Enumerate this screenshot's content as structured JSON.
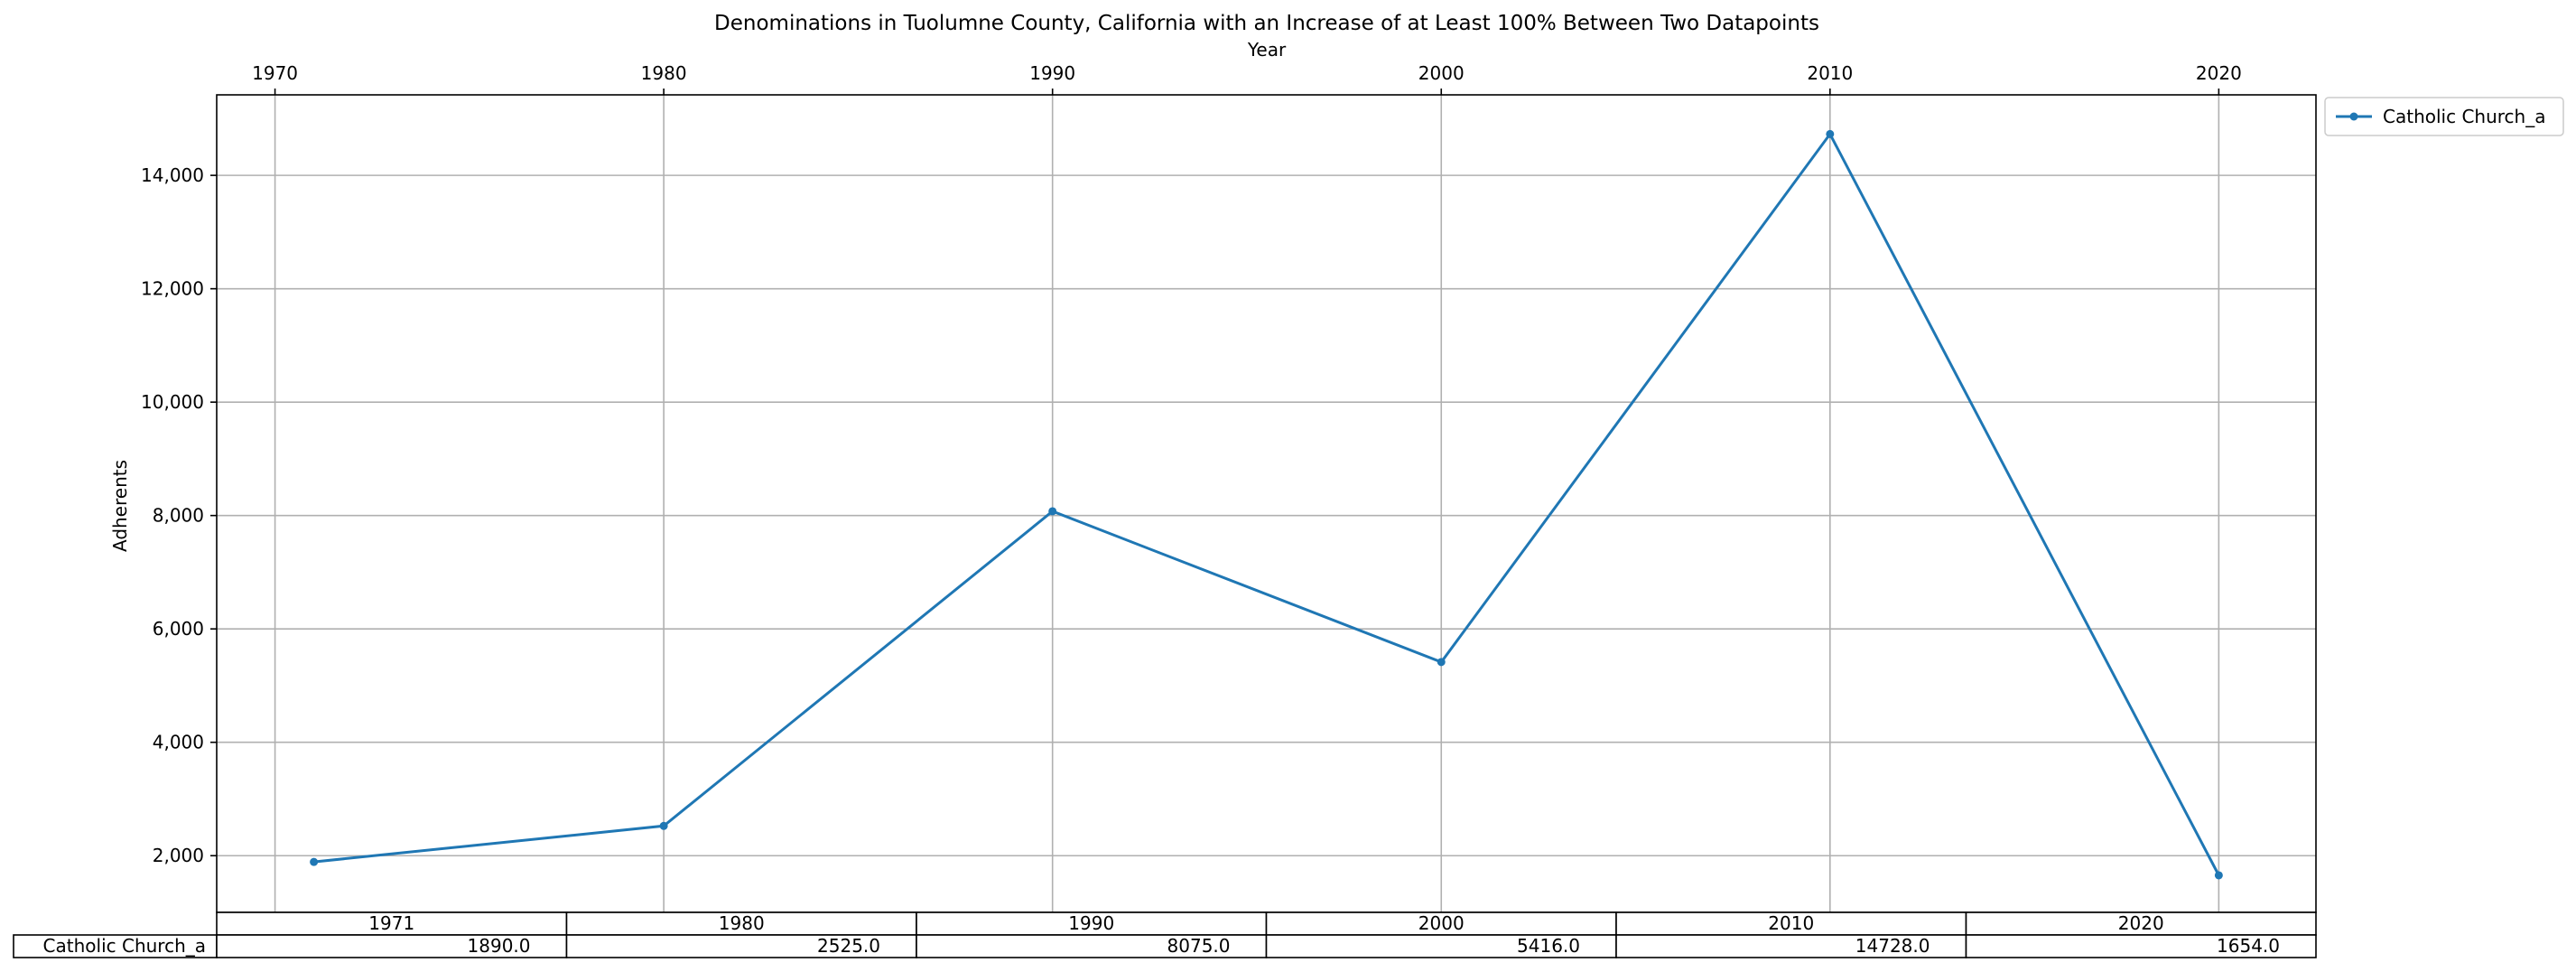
{
  "chart_data": {
    "type": "line",
    "title": "Denominations in Tuolumne County, California with an Increase of at Least 100% Between Two Datapoints",
    "xlabel": "Year",
    "ylabel": "Adherents",
    "x_ticks": [
      "1970",
      "1980",
      "1990",
      "2000",
      "2010",
      "2020"
    ],
    "y_ticks": [
      "2,000",
      "4,000",
      "6,000",
      "8,000",
      "10,000",
      "12,000",
      "14,000"
    ],
    "xlim": [
      1968.5,
      2022.5
    ],
    "ylim": [
      1000,
      15420
    ],
    "grid": true,
    "legend_position": "upper-right-outside",
    "series": [
      {
        "name": "Catholic Church_a",
        "color": "#1f77b4",
        "x": [
          1971,
          1980,
          1990,
          2000,
          2010,
          2020
        ],
        "y": [
          1890,
          2525,
          8075,
          5416,
          14728,
          1654
        ]
      }
    ],
    "table": {
      "col_labels": [
        "1971",
        "1980",
        "1990",
        "2000",
        "2010",
        "2020"
      ],
      "rows": [
        {
          "label": "Catholic Church_a",
          "cells": [
            "1890.0",
            "2525.0",
            "8075.0",
            "5416.0",
            "14728.0",
            "1654.0"
          ]
        }
      ]
    }
  }
}
